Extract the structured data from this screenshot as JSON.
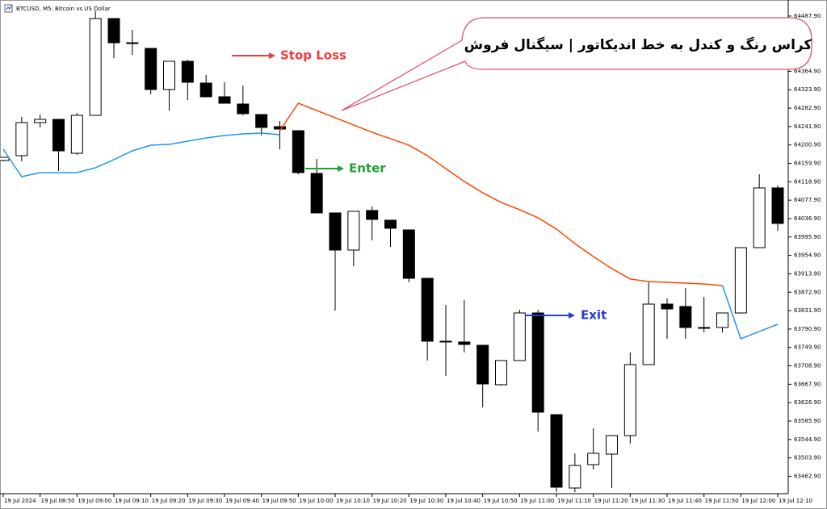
{
  "chart_data": {
    "type": "candlestick",
    "title": "BTCUSD, M5: Bitcoin vs US Dollar",
    "callout": "کراس رنگ و کندل به خط اندیکاتور | سیگنال فروش",
    "categories": [
      "19 Jul 2024",
      null,
      "19 Jul 08:50",
      null,
      "19 Jul 09:00",
      null,
      "19 Jul 09:10",
      null,
      "19 Jul 09:20",
      null,
      "19 Jul 09:30",
      null,
      "19 Jul 09:40",
      null,
      "19 Jul 09:50",
      null,
      "19 Jul 10:00",
      null,
      "19 Jul 10:10",
      null,
      "19 Jul 10:20",
      null,
      "19 Jul 10:30",
      null,
      "19 Jul 10:40",
      null,
      "19 Jul 10:50",
      null,
      "19 Jul 11:00",
      null,
      "19 Jul 11:10",
      null,
      "19 Jul 11:20",
      null,
      "19 Jul 11:30",
      null,
      "19 Jul 11:40",
      null,
      "19 Jul 11:50",
      null,
      "19 Jul 12:00",
      null,
      "19 Jul 12:10"
    ],
    "open": [
      64166.3,
      64177.0,
      64250.7,
      64257.9,
      64182.4,
      64266.9,
      64482.5,
      64428.6,
      64416.0,
      64324.4,
      64387.3,
      64338.7,
      64308.2,
      64292.0,
      64268.7,
      64241.7,
      64232.7,
      64137.5,
      64049.5,
      63966.8,
      64054.9,
      64033.3,
      64011.7,
      63903.9,
      63763.8,
      63762.0,
      63754.8,
      63666.8,
      63720.7,
      63826.7,
      63600.3,
      63436.8,
      63488.9,
      63512.3,
      63553.6,
      63711.7,
      63846.4,
      63841.1,
      63794.3,
      63794.3,
      63826.7,
      63972.2,
      64105.2
    ],
    "high": [
      64173.4,
      64263.3,
      64268.7,
      64257.9,
      64272.3,
      64498.6,
      64482.5,
      64457.3,
      64416.0,
      64387.3,
      64390.8,
      64356.7,
      64340.5,
      64333.3,
      64268.7,
      64254.3,
      64232.7,
      64169.9,
      64049.5,
      64053.1,
      64063.8,
      64033.3,
      64011.7,
      63903.9,
      63844.6,
      63855.4,
      63754.8,
      63720.7,
      63833.9,
      63833.9,
      63600.3,
      63514.1,
      63569.8,
      63553.6,
      63738.6,
      63895.0,
      63859.0,
      63882.4,
      63862.6,
      63826.7,
      63972.2,
      64135.7,
      64110.6
    ],
    "low": [
      64164.5,
      64164.5,
      64239.9,
      64142.9,
      64178.8,
      64266.9,
      64394.4,
      64401.6,
      64313.6,
      64277.7,
      64301.0,
      64308.2,
      64293.8,
      64266.9,
      64222.0,
      64191.4,
      64135.7,
      64049.5,
      63832.1,
      63930.9,
      63988.4,
      63974.0,
      63895.0,
      63720.7,
      63686.5,
      63738.6,
      63616.5,
      63665.0,
      63720.7,
      63562.6,
      63427.8,
      63427.8,
      63478.1,
      63436.8,
      63535.6,
      63711.7,
      63769.2,
      63769.2,
      63783.6,
      63783.6,
      63824.9,
      63972.2,
      64009.9
    ],
    "close": [
      64173.4,
      64250.7,
      64257.9,
      64187.8,
      64266.9,
      64482.5,
      64428.6,
      64428.6,
      64324.4,
      64387.3,
      64340.5,
      64308.2,
      64293.8,
      64270.5,
      64239.9,
      64236.3,
      64139.3,
      64049.5,
      63966.8,
      64053.1,
      64035.1,
      64015.3,
      63903.9,
      63763.8,
      63763.8,
      63756.6,
      63668.6,
      63720.7,
      63826.7,
      63605.7,
      63438.6,
      63487.1,
      63514.1,
      63553.6,
      63711.7,
      63846.4,
      63835.7,
      63794.3,
      63794.3,
      63826.7,
      63972.2,
      64105.2,
      64026.1
    ],
    "lines": [
      {
        "color": "#2196f3",
        "values": [
          64191.4,
          64130.3,
          64139.3,
          64139.3,
          64139.3,
          64150.1,
          64168.1,
          64187.8,
          64200.4,
          64202.2,
          64209.4,
          64216.6,
          64222.0,
          64225.6,
          64227.4,
          64223.8,
          null,
          null,
          null,
          null,
          null,
          null,
          null,
          null,
          null,
          null,
          null,
          null,
          null,
          null,
          null,
          null,
          null,
          null,
          null,
          null,
          null,
          null,
          null,
          63887.8,
          63769.2,
          63785.4,
          63801.5
        ]
      },
      {
        "color": "#ff4500",
        "values": [
          null,
          null,
          null,
          null,
          null,
          null,
          null,
          null,
          null,
          null,
          null,
          null,
          null,
          null,
          null,
          64232.7,
          64293.8,
          64277.7,
          64261.5,
          64245.3,
          64229.2,
          64214.8,
          64200.4,
          64177.0,
          64148.3,
          64119.6,
          64094.4,
          64072.9,
          64056.7,
          64038.7,
          64013.6,
          63981.2,
          63952.5,
          63925.5,
          63902.2,
          63896.8,
          63895.0,
          63893.2,
          63891.4,
          63887.8,
          null,
          null,
          null
        ]
      }
    ],
    "annotations": [
      {
        "text": "Stop Loss",
        "color": "#f03c3c"
      },
      {
        "text": "Enter",
        "color": "#22a033"
      },
      {
        "text": "Exit",
        "color": "#2a3ad8"
      }
    ],
    "ylim": [
      63424.2,
      64498.6
    ],
    "yticks": [
      {
        "value": 64487.9,
        "label": "64487.90"
      },
      {
        "value": 64364.9,
        "label": "64364.90"
      },
      {
        "value": 64323.9,
        "label": "64323.90"
      },
      {
        "value": 64282.9,
        "label": "64282.90"
      },
      {
        "value": 64241.9,
        "label": "64241.90"
      },
      {
        "value": 64200.9,
        "label": "64200.90"
      },
      {
        "value": 64159.9,
        "label": "64159.90"
      },
      {
        "value": 64118.9,
        "label": "64118.90"
      },
      {
        "value": 64077.9,
        "label": "64077.90"
      },
      {
        "value": 64036.9,
        "label": "64036.90"
      },
      {
        "value": 63995.9,
        "label": "63995.90"
      },
      {
        "value": 63954.9,
        "label": "63954.90"
      },
      {
        "value": 63913.9,
        "label": "63913.90"
      },
      {
        "value": 63872.9,
        "label": "63872.90"
      },
      {
        "value": 63831.9,
        "label": "63831.90"
      },
      {
        "value": 63790.9,
        "label": "63790.90"
      },
      {
        "value": 63749.9,
        "label": "63749.90"
      },
      {
        "value": 63708.9,
        "label": "63708.90"
      },
      {
        "value": 63667.9,
        "label": "63667.90"
      },
      {
        "value": 63626.9,
        "label": "63626.90"
      },
      {
        "value": 63585.9,
        "label": "63585.90"
      },
      {
        "value": 63544.9,
        "label": "63544.90"
      },
      {
        "value": 63503.9,
        "label": "63503.90"
      },
      {
        "value": 63462.9,
        "label": "63462.90"
      }
    ]
  }
}
